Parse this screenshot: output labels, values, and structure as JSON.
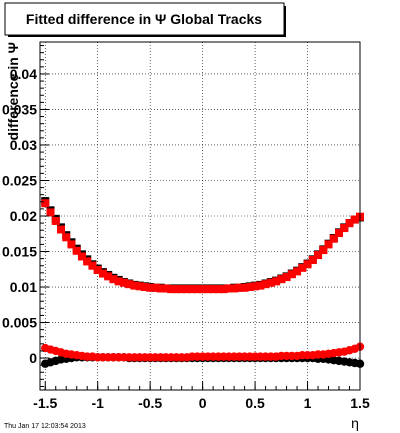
{
  "chart_data": {
    "type": "scatter",
    "title": "Fitted difference in Ψ   Global Tracks",
    "xlabel": "η",
    "ylabel": "difference in Ψ",
    "timestamp": "Thu Jan 17 12:03:54 2013",
    "xlim": [
      -1.55,
      1.5
    ],
    "ylim": [
      -0.0045,
      0.0445
    ],
    "xticks": [
      -1.5,
      -1,
      -0.5,
      0,
      0.5,
      1,
      1.5
    ],
    "xtick_labels": [
      "-1.5",
      "-1",
      "-0.5",
      "0",
      "0.5",
      "1",
      "1.5"
    ],
    "yticks": [
      0,
      0.005,
      0.01,
      0.015,
      0.02,
      0.025,
      0.03,
      0.035,
      0.04
    ],
    "ytick_labels": [
      "0",
      "0.005",
      "0.01",
      "0.015",
      "0.02",
      "0.025",
      "0.03",
      "0.035",
      "0.04"
    ],
    "grid": true,
    "x": [
      -1.5,
      -1.45,
      -1.4,
      -1.35,
      -1.3,
      -1.25,
      -1.2,
      -1.15,
      -1.1,
      -1.05,
      -1.0,
      -0.95,
      -0.9,
      -0.85,
      -0.8,
      -0.75,
      -0.7,
      -0.65,
      -0.6,
      -0.55,
      -0.5,
      -0.45,
      -0.4,
      -0.35,
      -0.3,
      -0.25,
      -0.2,
      -0.15,
      -0.1,
      -0.05,
      0.0,
      0.05,
      0.1,
      0.15,
      0.2,
      0.25,
      0.3,
      0.35,
      0.4,
      0.45,
      0.5,
      0.55,
      0.6,
      0.65,
      0.7,
      0.75,
      0.8,
      0.85,
      0.9,
      0.95,
      1.0,
      1.05,
      1.1,
      1.15,
      1.2,
      1.25,
      1.3,
      1.35,
      1.4,
      1.45,
      1.5
    ],
    "series": [
      {
        "color": "#000000",
        "marker": "square",
        "values": [
          0.0221,
          0.0208,
          0.0196,
          0.0184,
          0.0173,
          0.0163,
          0.0154,
          0.0146,
          0.0139,
          0.0132,
          0.0126,
          0.0121,
          0.0117,
          0.0113,
          0.011,
          0.0107,
          0.0105,
          0.0103,
          0.0102,
          0.0101,
          0.01,
          0.0099,
          0.0099,
          0.0098,
          0.0098,
          0.0098,
          0.0098,
          0.0098,
          0.0098,
          0.0098,
          0.0098,
          0.0098,
          0.0098,
          0.0098,
          0.0098,
          0.0098,
          0.0099,
          0.0099,
          0.01,
          0.0101,
          0.0102,
          0.0103,
          0.0105,
          0.0107,
          0.0109,
          0.0112,
          0.0115,
          0.0119,
          0.0123,
          0.0128,
          0.0133,
          0.0139,
          0.0146,
          0.0153,
          0.0161,
          0.0169,
          0.0177,
          0.0184,
          0.019,
          0.0195,
          0.0198
        ]
      },
      {
        "color": "#ff0000",
        "marker": "square",
        "values": [
          0.0218,
          0.0205,
          0.0193,
          0.0181,
          0.017,
          0.016,
          0.0151,
          0.0143,
          0.0136,
          0.013,
          0.0124,
          0.0119,
          0.0115,
          0.0111,
          0.0108,
          0.0106,
          0.0104,
          0.0102,
          0.0101,
          0.01,
          0.0099,
          0.0099,
          0.0098,
          0.0098,
          0.0097,
          0.0097,
          0.0097,
          0.0097,
          0.0097,
          0.0097,
          0.0097,
          0.0097,
          0.0097,
          0.0097,
          0.0097,
          0.0098,
          0.0098,
          0.0099,
          0.0099,
          0.01,
          0.0101,
          0.0102,
          0.0104,
          0.0106,
          0.0108,
          0.0111,
          0.0114,
          0.0118,
          0.0122,
          0.0127,
          0.0132,
          0.0138,
          0.0145,
          0.0152,
          0.016,
          0.0168,
          0.0176,
          0.0183,
          0.019,
          0.0195,
          0.0199
        ]
      },
      {
        "color": "#000000",
        "marker": "circle",
        "values": [
          -0.0008,
          -0.0006,
          -0.0004,
          -0.0002,
          -0.0001,
          0.0,
          0.0001,
          0.0001,
          0.0001,
          0.0001,
          0.0001,
          0.0001,
          0.0001,
          0.0001,
          0.0001,
          0.0001,
          0.0,
          0.0,
          0.0,
          0.0,
          0.0,
          0.0,
          0.0,
          0.0,
          0.0,
          0.0,
          0.0,
          0.0,
          0.0,
          0.0,
          0.0,
          0.0,
          0.0,
          0.0,
          0.0,
          0.0,
          0.0,
          0.0,
          0.0,
          0.0,
          0.0,
          0.0,
          0.0,
          0.0,
          0.0,
          0.0,
          0.0,
          0.0,
          0.0,
          0.0,
          0.0,
          0.0,
          -0.0001,
          -0.0001,
          -0.0002,
          -0.0003,
          -0.0004,
          -0.0005,
          -0.0006,
          -0.0007,
          -0.0008
        ]
      },
      {
        "color": "#ff0000",
        "marker": "circle",
        "values": [
          0.0014,
          0.0012,
          0.001,
          0.0008,
          0.0006,
          0.0005,
          0.0004,
          0.0003,
          0.0002,
          0.0002,
          0.0001,
          0.0001,
          0.0001,
          0.0001,
          0.0001,
          0.0001,
          0.0001,
          0.0001,
          0.0001,
          0.0001,
          0.0001,
          0.0001,
          0.0001,
          0.0001,
          0.0001,
          0.0001,
          0.0001,
          0.0001,
          0.0002,
          0.0002,
          0.0002,
          0.0002,
          0.0002,
          0.0002,
          0.0002,
          0.0002,
          0.0002,
          0.0002,
          0.0002,
          0.0002,
          0.0002,
          0.0002,
          0.0002,
          0.0002,
          0.0002,
          0.0003,
          0.0003,
          0.0003,
          0.0003,
          0.0004,
          0.0004,
          0.0004,
          0.0005,
          0.0005,
          0.0006,
          0.0007,
          0.0008,
          0.0009,
          0.0011,
          0.0013,
          0.0016
        ]
      }
    ]
  }
}
